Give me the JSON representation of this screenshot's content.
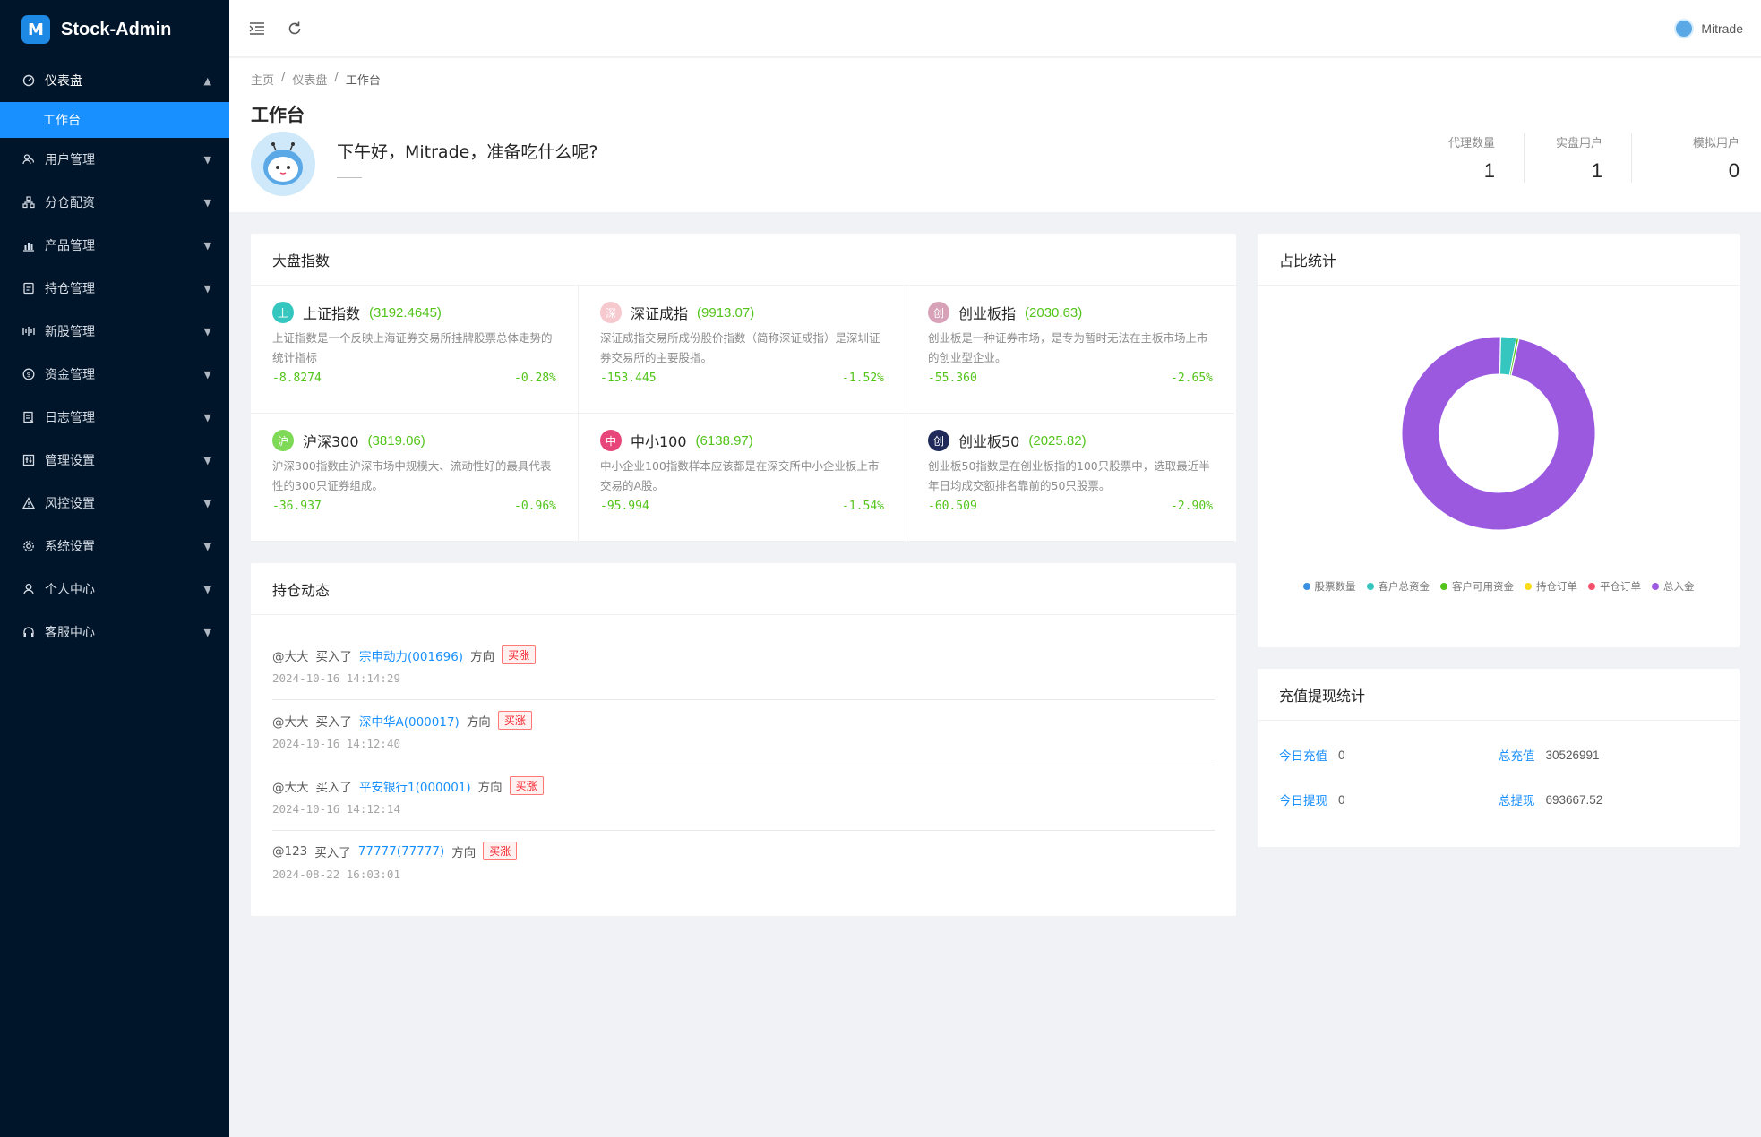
{
  "brand": {
    "name": "Stock-Admin",
    "logo_char": "M"
  },
  "sidebar": {
    "items": [
      {
        "label": "仪表盘",
        "icon": "dashboard-icon",
        "open": true,
        "children": [
          {
            "label": "工作台"
          }
        ]
      },
      {
        "label": "用户管理",
        "icon": "users-icon"
      },
      {
        "label": "分仓配资",
        "icon": "cluster-icon"
      },
      {
        "label": "产品管理",
        "icon": "chart-icon"
      },
      {
        "label": "持仓管理",
        "icon": "position-icon"
      },
      {
        "label": "新股管理",
        "icon": "ipo-icon"
      },
      {
        "label": "资金管理",
        "icon": "money-icon"
      },
      {
        "label": "日志管理",
        "icon": "log-icon"
      },
      {
        "label": "管理设置",
        "icon": "admin-settings-icon"
      },
      {
        "label": "风控设置",
        "icon": "warning-icon"
      },
      {
        "label": "系统设置",
        "icon": "gear-icon"
      },
      {
        "label": "个人中心",
        "icon": "user-icon"
      },
      {
        "label": "客服中心",
        "icon": "headset-icon"
      }
    ]
  },
  "header": {
    "user_name": "Mitrade"
  },
  "breadcrumb": [
    "主页",
    "仪表盘",
    "工作台"
  ],
  "page": {
    "title": "工作台",
    "greeting": "下午好，Mitrade，准备吃什么呢?",
    "stats": [
      {
        "label": "代理数量",
        "value": "1"
      },
      {
        "label": "实盘用户",
        "value": "1"
      },
      {
        "label": "模拟用户",
        "value": "0"
      }
    ]
  },
  "market": {
    "title": "大盘指数",
    "indices": [
      {
        "badge": "上",
        "color": "#36c6c0",
        "name": "上证指数",
        "value": "(3192.4645)",
        "desc": "上证指数是一个反映上海证券交易所挂牌股票总体走势的统计指标",
        "change": "-8.8274",
        "percent": "-0.28%"
      },
      {
        "badge": "深",
        "color": "#f6c9cf",
        "name": "深证成指",
        "value": "(9913.07)",
        "desc": "深证成指交易所成份股价指数（简称深证成指）是深圳证券交易所的主要股指。",
        "change": "-153.445",
        "percent": "-1.52%"
      },
      {
        "badge": "创",
        "color": "#d7a2b8",
        "name": "创业板指",
        "value": "(2030.63)",
        "desc": "创业板是一种证券市场，是专为暂时无法在主板市场上市的创业型企业。",
        "change": "-55.360",
        "percent": "-2.65%"
      },
      {
        "badge": "沪",
        "color": "#7ed957",
        "name": "沪深300",
        "value": "(3819.06)",
        "desc": "沪深300指数由沪深市场中规模大、流动性好的最具代表性的300只证券组成。",
        "change": "-36.937",
        "percent": "-0.96%"
      },
      {
        "badge": "中",
        "color": "#e8457a",
        "name": "中小100",
        "value": "(6138.97)",
        "desc": "中小企业100指数样本应该都是在深交所中小企业板上市交易的A股。",
        "change": "-95.994",
        "percent": "-1.54%"
      },
      {
        "badge": "创",
        "color": "#1f2a5a",
        "name": "创业板50",
        "value": "(2025.82)",
        "desc": "创业板50指数是在创业板指的100只股票中，选取最近半年日均成交额排名靠前的50只股票。",
        "change": "-60.509",
        "percent": "-2.90%"
      }
    ]
  },
  "holdings": {
    "title": "持仓动态",
    "items": [
      {
        "user": "@大大",
        "action": "买入了",
        "stock": "宗申动力(001696)",
        "dir_label": "方向",
        "direction": "买涨",
        "time": "2024-10-16 14:14:29"
      },
      {
        "user": "@大大",
        "action": "买入了",
        "stock": "深中华A(000017)",
        "dir_label": "方向",
        "direction": "买涨",
        "time": "2024-10-16 14:12:40"
      },
      {
        "user": "@大大",
        "action": "买入了",
        "stock": "平安银行1(000001)",
        "dir_label": "方向",
        "direction": "买涨",
        "time": "2024-10-16 14:12:14"
      },
      {
        "user": "@123",
        "action": "买入了",
        "stock": "77777(77777)",
        "dir_label": "方向",
        "direction": "买涨",
        "time": "2024-08-22 16:03:01"
      }
    ]
  },
  "ratio": {
    "title": "占比统计",
    "legend": [
      {
        "label": "股票数量",
        "color": "#3b8fe0"
      },
      {
        "label": "客户总资金",
        "color": "#36c6c0"
      },
      {
        "label": "客户可用资金",
        "color": "#52c41a"
      },
      {
        "label": "持仓订单",
        "color": "#fadb14"
      },
      {
        "label": "平仓订单",
        "color": "#f5516b"
      },
      {
        "label": "总入金",
        "color": "#9b59e0"
      }
    ]
  },
  "chart_data": {
    "type": "pie",
    "title": "占比统计",
    "categories": [
      "股票数量",
      "客户总资金",
      "客户可用资金",
      "持仓订单",
      "平仓订单",
      "总入金"
    ],
    "values": [
      0.05,
      2.6,
      0.4,
      0.02,
      0.02,
      96.9
    ],
    "colors": [
      "#3b8fe0",
      "#36c6c0",
      "#52c41a",
      "#fadb14",
      "#f5516b",
      "#9b59e0"
    ],
    "legend": "bottom"
  },
  "recharge": {
    "title": "充值提现统计",
    "items": [
      {
        "label": "今日充值",
        "value": "0"
      },
      {
        "label": "总充值",
        "value": "30526991"
      },
      {
        "label": "今日提现",
        "value": "0"
      },
      {
        "label": "总提现",
        "value": "693667.52"
      }
    ]
  }
}
